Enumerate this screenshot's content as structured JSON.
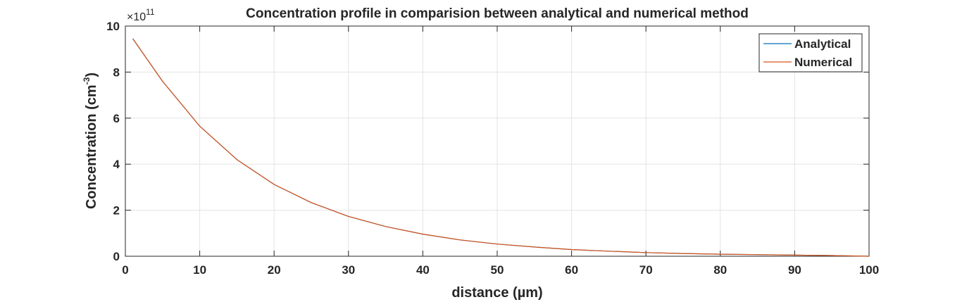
{
  "chart_data": {
    "type": "line",
    "title": "Concentration profile in comparision between analytical and numerical method",
    "xlabel": "distance (µm)",
    "ylabel_main": "Concentration (cm",
    "ylabel_sup": "-3",
    "ylabel_close": ")",
    "y_exponent_prefix": "×10",
    "y_exponent": "11",
    "xlim": [
      0,
      100
    ],
    "ylim": [
      0,
      10
    ],
    "x_ticks": [
      0,
      10,
      20,
      30,
      40,
      50,
      60,
      70,
      80,
      90,
      100
    ],
    "y_ticks": [
      0,
      2,
      4,
      6,
      8,
      10
    ],
    "grid": true,
    "legend_position": "top-right",
    "series": [
      {
        "name": "Analytical",
        "color": "#0072BD",
        "x": [
          1,
          5,
          10,
          15,
          20,
          25,
          30,
          35,
          40,
          45,
          50,
          55,
          60,
          65,
          70,
          75,
          80,
          85,
          90,
          95,
          100
        ],
        "y": [
          9.45,
          7.6,
          5.65,
          4.2,
          3.12,
          2.33,
          1.73,
          1.29,
          0.96,
          0.71,
          0.53,
          0.4,
          0.29,
          0.22,
          0.16,
          0.12,
          0.09,
          0.07,
          0.05,
          0.03,
          0.0
        ]
      },
      {
        "name": "Numerical",
        "color": "#D95319",
        "x": [
          1,
          5,
          10,
          15,
          20,
          25,
          30,
          35,
          40,
          45,
          50,
          55,
          60,
          65,
          70,
          75,
          80,
          85,
          90,
          95,
          100
        ],
        "y": [
          9.45,
          7.6,
          5.65,
          4.2,
          3.12,
          2.33,
          1.73,
          1.29,
          0.96,
          0.71,
          0.53,
          0.4,
          0.29,
          0.22,
          0.16,
          0.12,
          0.09,
          0.07,
          0.05,
          0.03,
          0.0
        ]
      }
    ]
  }
}
